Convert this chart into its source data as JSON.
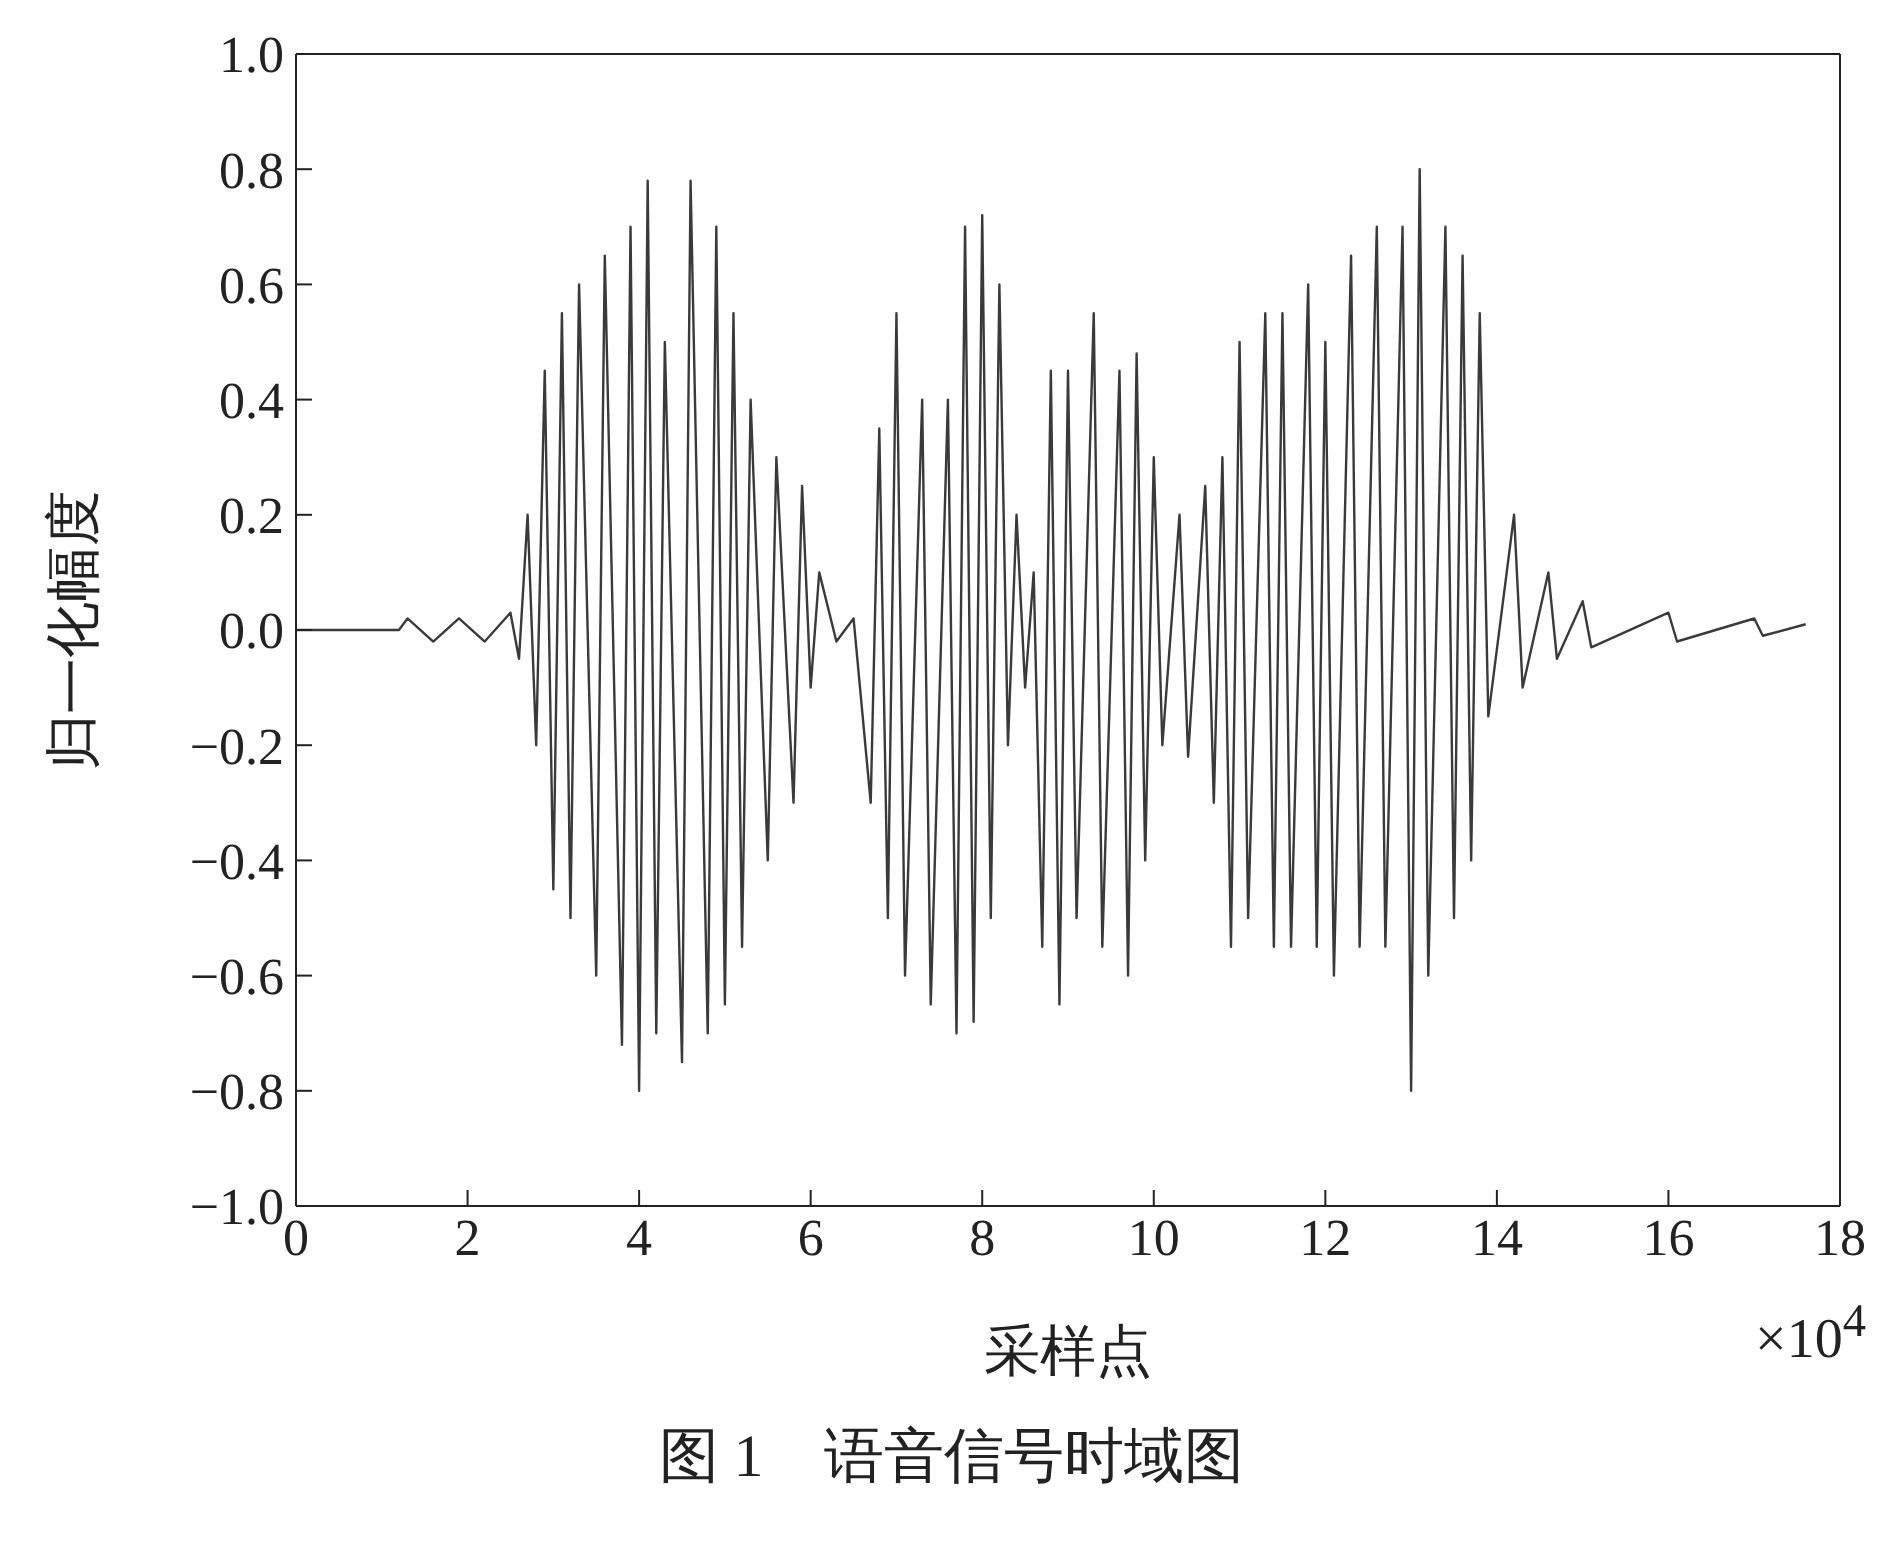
{
  "chart_data": {
    "type": "line",
    "xlabel": "采样点",
    "ylabel": "归一化幅度",
    "annotations": [
      "×10$^{4}$",
      "图 1　语音信号时域图"
    ],
    "x": [
      0,
      1.2,
      1.3,
      1.6,
      1.9,
      2.2,
      2.5,
      2.6,
      2.7,
      2.8,
      2.9,
      3.0,
      3.1,
      3.2,
      3.3,
      3.5,
      3.6,
      3.8,
      3.9,
      4.0,
      4.1,
      4.2,
      4.3,
      4.5,
      4.6,
      4.8,
      4.9,
      5.0,
      5.1,
      5.2,
      5.3,
      5.5,
      5.6,
      5.8,
      5.9,
      6.0,
      6.1,
      6.3,
      6.5,
      6.7,
      6.8,
      6.9,
      7.0,
      7.1,
      7.3,
      7.4,
      7.6,
      7.7,
      7.8,
      7.9,
      8.0,
      8.1,
      8.2,
      8.3,
      8.4,
      8.5,
      8.6,
      8.7,
      8.8,
      8.9,
      9.0,
      9.1,
      9.3,
      9.4,
      9.6,
      9.7,
      9.8,
      9.9,
      10.0,
      10.1,
      10.3,
      10.4,
      10.6,
      10.7,
      10.8,
      10.9,
      11.0,
      11.1,
      11.3,
      11.4,
      11.5,
      11.6,
      11.8,
      11.9,
      12.0,
      12.1,
      12.3,
      12.4,
      12.6,
      12.7,
      12.9,
      13.0,
      13.1,
      13.2,
      13.4,
      13.5,
      13.6,
      13.7,
      13.8,
      13.9,
      14.2,
      14.3,
      14.6,
      14.7,
      15.0,
      15.1,
      16.0,
      16.1,
      17.0,
      17.1,
      17.6
    ],
    "series": [
      {
        "color": "#3a3a3a",
        "values": [
          0,
          0,
          0.02,
          -0.02,
          0.02,
          -0.02,
          0.03,
          -0.05,
          0.2,
          -0.2,
          0.45,
          -0.45,
          0.55,
          -0.5,
          0.6,
          -0.6,
          0.65,
          -0.72,
          0.7,
          -0.8,
          0.78,
          -0.7,
          0.5,
          -0.75,
          0.78,
          -0.7,
          0.7,
          -0.65,
          0.55,
          -0.55,
          0.4,
          -0.4,
          0.3,
          -0.3,
          0.25,
          -0.1,
          0.1,
          -0.02,
          0.02,
          -0.3,
          0.35,
          -0.5,
          0.55,
          -0.6,
          0.4,
          -0.65,
          0.4,
          -0.7,
          0.7,
          -0.68,
          0.72,
          -0.5,
          0.6,
          -0.2,
          0.2,
          -0.1,
          0.1,
          -0.55,
          0.45,
          -0.65,
          0.45,
          -0.5,
          0.55,
          -0.55,
          0.45,
          -0.6,
          0.48,
          -0.4,
          0.3,
          -0.2,
          0.2,
          -0.22,
          0.25,
          -0.3,
          0.3,
          -0.55,
          0.5,
          -0.5,
          0.55,
          -0.55,
          0.55,
          -0.55,
          0.6,
          -0.55,
          0.5,
          -0.6,
          0.65,
          -0.55,
          0.7,
          -0.55,
          0.7,
          -0.8,
          0.8,
          -0.6,
          0.7,
          -0.5,
          0.65,
          -0.4,
          0.55,
          -0.15,
          0.2,
          -0.1,
          0.1,
          -0.05,
          0.05,
          -0.03,
          0.03,
          -0.02,
          0.02,
          -0.01,
          0.01
        ]
      }
    ],
    "xlim": [
      0,
      18
    ],
    "xticks": [
      0,
      2,
      4,
      6,
      8,
      10,
      12,
      14,
      16,
      18
    ],
    "ylim": [
      -1,
      1
    ],
    "yticks": [
      {
        "value": -1,
        "label": "−1.0"
      },
      {
        "value": -0.8,
        "label": "−0.8"
      },
      {
        "value": -0.6,
        "label": "−0.6"
      },
      {
        "value": -0.4,
        "label": "−0.4"
      },
      {
        "value": -0.2,
        "label": "−0.2"
      },
      {
        "value": 0,
        "label": "0.0"
      },
      {
        "value": 0.2,
        "label": "0.2"
      },
      {
        "value": 0.4,
        "label": "0.4"
      },
      {
        "value": 0.6,
        "label": "0.6"
      },
      {
        "value": 0.8,
        "label": "0.8"
      },
      {
        "value": 1,
        "label": "1.0"
      }
    ],
    "marker": "none",
    "line_style": "solid"
  }
}
